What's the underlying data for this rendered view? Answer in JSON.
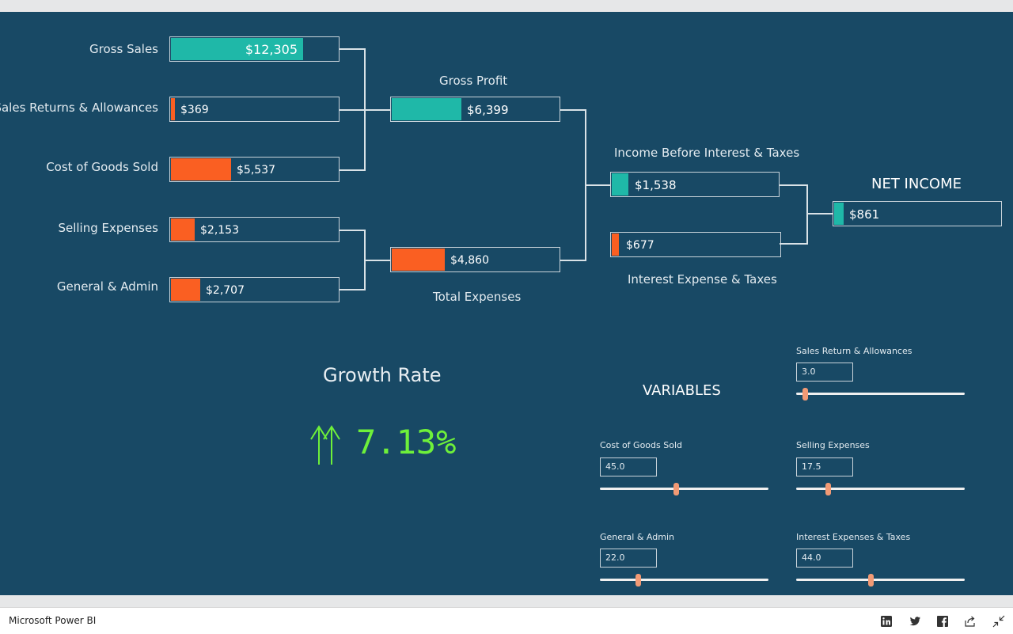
{
  "app": {
    "name": "Microsoft Power BI"
  },
  "waterfall": {
    "left": [
      {
        "label": "Gross Sales",
        "value": "$12,305",
        "fraction": 0.793,
        "color": "#1fb8a8"
      },
      {
        "label": "Sales Returns & Allowances",
        "value": "$369",
        "fraction": 0.024,
        "color": "#fa5f22"
      },
      {
        "label": "Cost of Goods Sold",
        "value": "$5,537",
        "fraction": 0.36,
        "color": "#fa5f22"
      },
      {
        "label": "Selling Expenses",
        "value": "$2,153",
        "fraction": 0.14,
        "color": "#fa5f22"
      },
      {
        "label": "General & Admin",
        "value": "$2,707",
        "fraction": 0.176,
        "color": "#fa5f22"
      }
    ],
    "gross_profit": {
      "label": "Gross Profit",
      "value": "$6,399",
      "fraction": 0.416,
      "color": "#1fb8a8"
    },
    "total_expenses": {
      "label": "Total Expenses",
      "value": "$4,860",
      "fraction": 0.316,
      "color": "#fa5f22"
    },
    "ebit": {
      "label": "Income Before Interest & Taxes",
      "value": "$1,538",
      "fraction": 0.1,
      "color": "#1fb8a8"
    },
    "interest": {
      "label": "Interest Expense & Taxes",
      "value": "$677",
      "fraction": 0.044,
      "color": "#fa5f22"
    },
    "net_income": {
      "label": "NET INCOME",
      "value": "$861",
      "fraction": 0.056,
      "color": "#1fb8a8"
    }
  },
  "growth": {
    "title": "Growth Rate",
    "value": "7.13%",
    "color": "#6ef03a"
  },
  "variables": {
    "title": "VARIABLES",
    "items": [
      {
        "label": "Sales Return & Allowances",
        "value": "3.0",
        "level": 0.04
      },
      {
        "label": "Cost of Goods Sold",
        "value": "45.0",
        "level": 0.45
      },
      {
        "label": "Selling Expenses",
        "value": "17.5",
        "level": 0.18
      },
      {
        "label": "General & Admin",
        "value": "22.0",
        "level": 0.22
      },
      {
        "label": "Interest Expenses & Taxes",
        "value": "44.0",
        "level": 0.44
      }
    ]
  },
  "share_icons": [
    "linkedin-icon",
    "twitter-icon",
    "facebook-icon",
    "share-icon",
    "collapse-icon"
  ]
}
